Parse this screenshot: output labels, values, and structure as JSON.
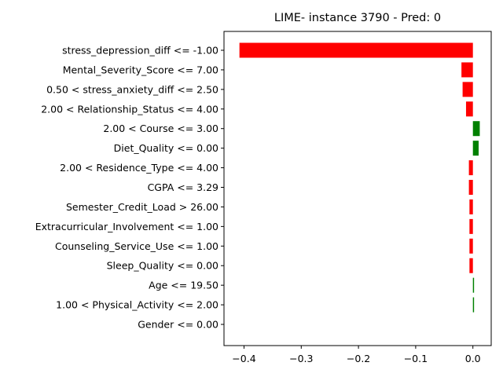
{
  "chart_data": {
    "type": "bar",
    "orientation": "horizontal",
    "title": "LIME- instance 3790 - Pred: 0",
    "xlabel": "",
    "ylabel": "",
    "xlim": [
      -0.435,
      0.032
    ],
    "xticks": [
      -0.4,
      -0.3,
      -0.2,
      -0.1,
      0.0
    ],
    "xtick_labels": [
      "−0.4",
      "−0.3",
      "−0.2",
      "−0.1",
      "0.0"
    ],
    "grid": false,
    "legend": "none",
    "positive_color": "#008000",
    "negative_color": "#ff0000",
    "categories": [
      "stress_depression_diff <= -1.00",
      "Mental_Severity_Score <= 7.00",
      "0.50 < stress_anxiety_diff <= 2.50",
      "2.00 < Relationship_Status <= 4.00",
      "2.00 < Course <= 3.00",
      "Diet_Quality <= 0.00",
      "2.00 < Residence_Type <= 4.00",
      "CGPA <= 3.29",
      "Semester_Credit_Load > 26.00",
      "Extracurricular_Involvement <= 1.00",
      "Counseling_Service_Use <= 1.00",
      "Sleep_Quality <= 0.00",
      "Age <= 19.50",
      "1.00 < Physical_Activity <= 2.00",
      "Gender <= 0.00"
    ],
    "values": [
      -0.408,
      -0.02,
      -0.018,
      -0.012,
      0.012,
      0.01,
      -0.007,
      -0.007,
      -0.006,
      -0.006,
      -0.006,
      -0.006,
      0.002,
      0.002,
      0.0
    ]
  }
}
